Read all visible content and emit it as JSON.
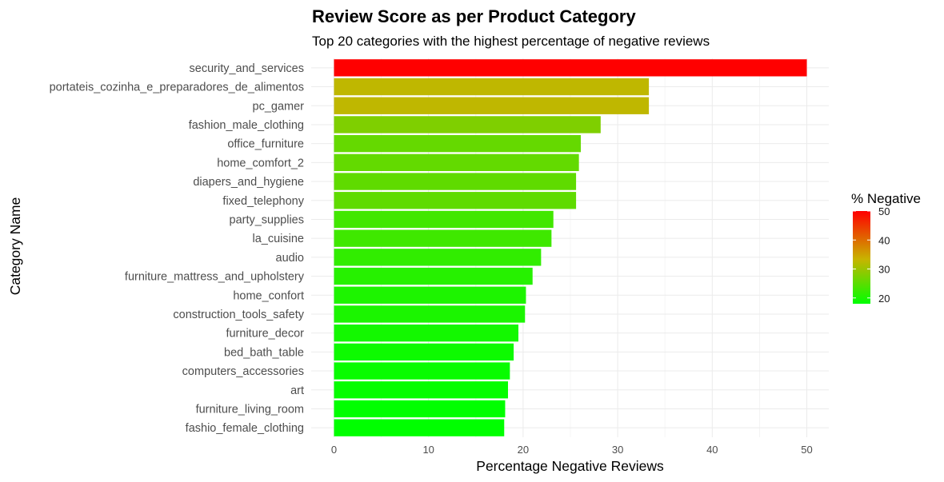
{
  "chart_data": {
    "type": "bar",
    "orientation": "horizontal",
    "title": "Review Score as per Product Category",
    "subtitle": "Top 20 categories with the highest percentage of negative reviews",
    "xlabel": "Percentage Negative Reviews",
    "ylabel": "Category Name",
    "xlim": [
      0,
      52
    ],
    "xticks": [
      0,
      10,
      20,
      30,
      40,
      50
    ],
    "grid": true,
    "categories": [
      "security_and_services",
      "portateis_cozinha_e_preparadores_de_alimentos",
      "pc_gamer",
      "fashion_male_clothing",
      "office_furniture",
      "home_comfort_2",
      "diapers_and_hygiene",
      "fixed_telephony",
      "party_supplies",
      "la_cuisine",
      "audio",
      "furniture_mattress_and_upholstery",
      "home_confort",
      "construction_tools_safety",
      "furniture_decor",
      "bed_bath_table",
      "computers_accessories",
      "art",
      "furniture_living_room",
      "fashio_female_clothing"
    ],
    "values": [
      50.0,
      33.3,
      33.3,
      28.2,
      26.1,
      25.9,
      25.6,
      25.6,
      23.2,
      23.0,
      21.9,
      21.0,
      20.3,
      20.2,
      19.5,
      19.0,
      18.6,
      18.4,
      18.1,
      18.0
    ],
    "legend": {
      "title": "% Negative",
      "placement": "right",
      "ticks": [
        20,
        30,
        40,
        50
      ],
      "range": [
        18.0,
        50.0
      ]
    },
    "colors": {
      "low": "#00ff00",
      "mid": "#c8b400",
      "high": "#ff0000"
    }
  }
}
